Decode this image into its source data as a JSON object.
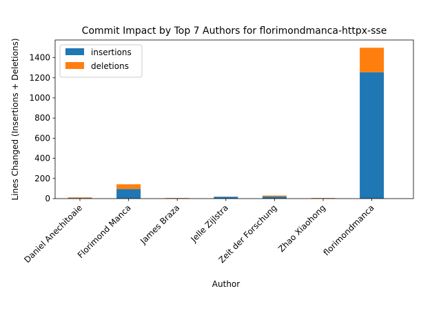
{
  "chart_data": {
    "type": "bar",
    "stacked": true,
    "title": "Commit Impact by Top 7 Authors for florimondmanca-httpx-sse",
    "xlabel": "Author",
    "ylabel": "Lines Changed (Insertions + Deletions)",
    "ylim": [
      0,
      1575
    ],
    "yticks": [
      0,
      200,
      400,
      600,
      800,
      1000,
      1200,
      1400
    ],
    "categories": [
      "Daniel Anechitoaie",
      "Florimond Manca",
      "James Braza",
      "Jelle Zijlstra",
      "Zeit der Forschung",
      "Zhao Xiaohong",
      "florimondmanca"
    ],
    "series": [
      {
        "name": "insertions",
        "color": "#1f77b4",
        "values": [
          6,
          95,
          3,
          18,
          20,
          3,
          1255
        ]
      },
      {
        "name": "deletions",
        "color": "#ff7f0e",
        "values": [
          6,
          47,
          3,
          1,
          10,
          3,
          243
        ]
      }
    ],
    "legend_position": "upper-left",
    "grid": false
  }
}
